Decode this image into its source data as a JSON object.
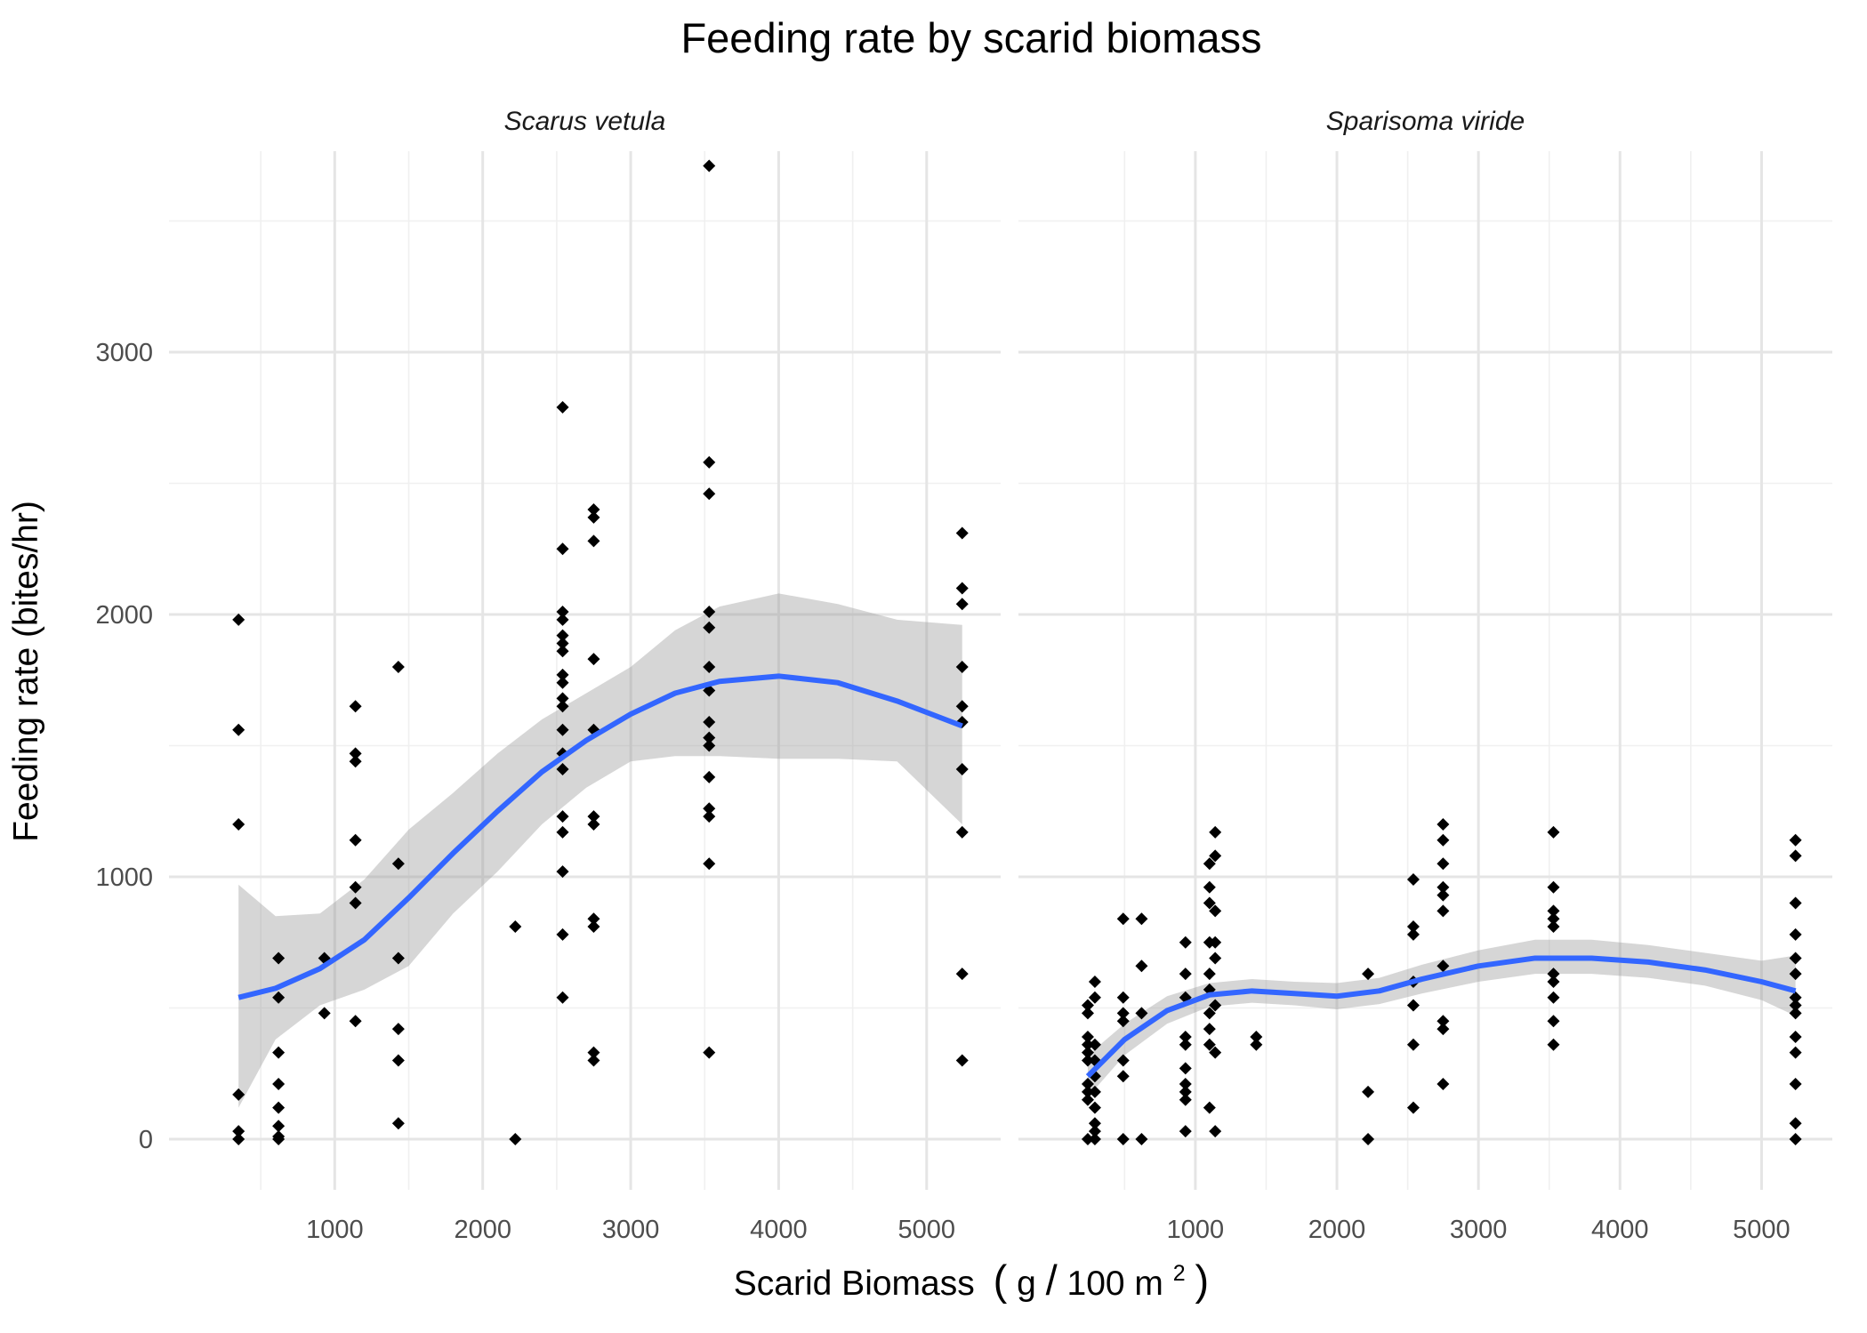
{
  "chart_data": {
    "type": "scatter",
    "title": "Feeding rate by scarid biomass",
    "xlabel": "Scarid Biomass (g/100 m²)",
    "xlabel_parts": {
      "main": "Scarid Biomass",
      "open": "(",
      "unit": "g",
      "slash": "/",
      "unit2": "100 m",
      "sup": "2",
      "close": ")"
    },
    "ylabel": "Feeding rate (bites/hr)",
    "xlim": [
      0,
      5500
    ],
    "ylim": [
      -200,
      3800
    ],
    "x_ticks": [
      1000,
      2000,
      3000,
      4000,
      5000
    ],
    "y_ticks": [
      0,
      1000,
      2000,
      3000
    ],
    "grid": true,
    "smoother_color": "#3366FF",
    "ribbon_color": "#999999",
    "point_color": "#000000",
    "panels": [
      {
        "name": "Scarus vetula",
        "xlim": [
          -120,
          5500
        ],
        "points": [
          {
            "x": 350,
            "y": 1980
          },
          {
            "x": 350,
            "y": 1560
          },
          {
            "x": 350,
            "y": 1200
          },
          {
            "x": 350,
            "y": 170
          },
          {
            "x": 350,
            "y": 30
          },
          {
            "x": 350,
            "y": 0
          },
          {
            "x": 620,
            "y": 690
          },
          {
            "x": 620,
            "y": 540
          },
          {
            "x": 620,
            "y": 330
          },
          {
            "x": 620,
            "y": 210
          },
          {
            "x": 620,
            "y": 120
          },
          {
            "x": 620,
            "y": 50
          },
          {
            "x": 620,
            "y": 10
          },
          {
            "x": 620,
            "y": 0
          },
          {
            "x": 930,
            "y": 690
          },
          {
            "x": 930,
            "y": 480
          },
          {
            "x": 1140,
            "y": 1650
          },
          {
            "x": 1140,
            "y": 1470
          },
          {
            "x": 1140,
            "y": 1440
          },
          {
            "x": 1140,
            "y": 1140
          },
          {
            "x": 1140,
            "y": 960
          },
          {
            "x": 1140,
            "y": 900
          },
          {
            "x": 1140,
            "y": 450
          },
          {
            "x": 1430,
            "y": 1800
          },
          {
            "x": 1430,
            "y": 1050
          },
          {
            "x": 1430,
            "y": 690
          },
          {
            "x": 1430,
            "y": 420
          },
          {
            "x": 1430,
            "y": 300
          },
          {
            "x": 1430,
            "y": 60
          },
          {
            "x": 2220,
            "y": 810
          },
          {
            "x": 2220,
            "y": 0
          },
          {
            "x": 2540,
            "y": 2790
          },
          {
            "x": 2540,
            "y": 2250
          },
          {
            "x": 2540,
            "y": 2010
          },
          {
            "x": 2540,
            "y": 1980
          },
          {
            "x": 2540,
            "y": 1920
          },
          {
            "x": 2540,
            "y": 1890
          },
          {
            "x": 2540,
            "y": 1860
          },
          {
            "x": 2540,
            "y": 1770
          },
          {
            "x": 2540,
            "y": 1740
          },
          {
            "x": 2540,
            "y": 1680
          },
          {
            "x": 2540,
            "y": 1650
          },
          {
            "x": 2540,
            "y": 1560
          },
          {
            "x": 2540,
            "y": 1470
          },
          {
            "x": 2540,
            "y": 1410
          },
          {
            "x": 2540,
            "y": 1230
          },
          {
            "x": 2540,
            "y": 1170
          },
          {
            "x": 2540,
            "y": 1020
          },
          {
            "x": 2540,
            "y": 780
          },
          {
            "x": 2540,
            "y": 540
          },
          {
            "x": 2750,
            "y": 2400
          },
          {
            "x": 2750,
            "y": 2370
          },
          {
            "x": 2750,
            "y": 2280
          },
          {
            "x": 2750,
            "y": 1830
          },
          {
            "x": 2750,
            "y": 1560
          },
          {
            "x": 2750,
            "y": 1230
          },
          {
            "x": 2750,
            "y": 1200
          },
          {
            "x": 2750,
            "y": 840
          },
          {
            "x": 2750,
            "y": 810
          },
          {
            "x": 2750,
            "y": 330
          },
          {
            "x": 2750,
            "y": 300
          },
          {
            "x": 3530,
            "y": 3710
          },
          {
            "x": 3530,
            "y": 2580
          },
          {
            "x": 3530,
            "y": 2460
          },
          {
            "x": 3530,
            "y": 2010
          },
          {
            "x": 3530,
            "y": 1950
          },
          {
            "x": 3530,
            "y": 1800
          },
          {
            "x": 3530,
            "y": 1710
          },
          {
            "x": 3530,
            "y": 1590
          },
          {
            "x": 3530,
            "y": 1530
          },
          {
            "x": 3530,
            "y": 1500
          },
          {
            "x": 3530,
            "y": 1380
          },
          {
            "x": 3530,
            "y": 1260
          },
          {
            "x": 3530,
            "y": 1230
          },
          {
            "x": 3530,
            "y": 1050
          },
          {
            "x": 3530,
            "y": 330
          },
          {
            "x": 5240,
            "y": 2310
          },
          {
            "x": 5240,
            "y": 2100
          },
          {
            "x": 5240,
            "y": 2040
          },
          {
            "x": 5240,
            "y": 1800
          },
          {
            "x": 5240,
            "y": 1650
          },
          {
            "x": 5240,
            "y": 1590
          },
          {
            "x": 5240,
            "y": 1410
          },
          {
            "x": 5240,
            "y": 1170
          },
          {
            "x": 5240,
            "y": 630
          },
          {
            "x": 5240,
            "y": 300
          }
        ],
        "smooth": [
          {
            "x": 350,
            "y": 540,
            "lo": 120,
            "hi": 970
          },
          {
            "x": 600,
            "y": 575,
            "lo": 380,
            "hi": 850
          },
          {
            "x": 900,
            "y": 650,
            "lo": 510,
            "hi": 860
          },
          {
            "x": 1200,
            "y": 760,
            "lo": 570,
            "hi": 990
          },
          {
            "x": 1500,
            "y": 920,
            "lo": 660,
            "hi": 1180
          },
          {
            "x": 1800,
            "y": 1090,
            "lo": 860,
            "hi": 1320
          },
          {
            "x": 2100,
            "y": 1250,
            "lo": 1020,
            "hi": 1470
          },
          {
            "x": 2400,
            "y": 1400,
            "lo": 1200,
            "hi": 1600
          },
          {
            "x": 2700,
            "y": 1520,
            "lo": 1340,
            "hi": 1700
          },
          {
            "x": 3000,
            "y": 1620,
            "lo": 1440,
            "hi": 1800
          },
          {
            "x": 3300,
            "y": 1700,
            "lo": 1460,
            "hi": 1940
          },
          {
            "x": 3600,
            "y": 1745,
            "lo": 1460,
            "hi": 2030
          },
          {
            "x": 4000,
            "y": 1765,
            "lo": 1450,
            "hi": 2080
          },
          {
            "x": 4400,
            "y": 1740,
            "lo": 1450,
            "hi": 2040
          },
          {
            "x": 4800,
            "y": 1670,
            "lo": 1440,
            "hi": 1980
          },
          {
            "x": 5240,
            "y": 1575,
            "lo": 1200,
            "hi": 1960
          }
        ]
      },
      {
        "name": "Sparisoma viride",
        "xlim": [
          -250,
          5500
        ],
        "points": [
          {
            "x": 240,
            "y": 510
          },
          {
            "x": 240,
            "y": 480
          },
          {
            "x": 240,
            "y": 390
          },
          {
            "x": 240,
            "y": 360
          },
          {
            "x": 240,
            "y": 330
          },
          {
            "x": 240,
            "y": 300
          },
          {
            "x": 240,
            "y": 210
          },
          {
            "x": 240,
            "y": 180
          },
          {
            "x": 240,
            "y": 150
          },
          {
            "x": 240,
            "y": 0
          },
          {
            "x": 290,
            "y": 600
          },
          {
            "x": 290,
            "y": 540
          },
          {
            "x": 290,
            "y": 360
          },
          {
            "x": 290,
            "y": 300
          },
          {
            "x": 290,
            "y": 240
          },
          {
            "x": 290,
            "y": 180
          },
          {
            "x": 290,
            "y": 120
          },
          {
            "x": 290,
            "y": 60
          },
          {
            "x": 290,
            "y": 30
          },
          {
            "x": 290,
            "y": 0
          },
          {
            "x": 490,
            "y": 840
          },
          {
            "x": 490,
            "y": 540
          },
          {
            "x": 490,
            "y": 480
          },
          {
            "x": 490,
            "y": 450
          },
          {
            "x": 490,
            "y": 300
          },
          {
            "x": 490,
            "y": 240
          },
          {
            "x": 490,
            "y": 0
          },
          {
            "x": 620,
            "y": 840
          },
          {
            "x": 620,
            "y": 660
          },
          {
            "x": 620,
            "y": 480
          },
          {
            "x": 620,
            "y": 0
          },
          {
            "x": 930,
            "y": 750
          },
          {
            "x": 930,
            "y": 630
          },
          {
            "x": 930,
            "y": 540
          },
          {
            "x": 930,
            "y": 390
          },
          {
            "x": 930,
            "y": 360
          },
          {
            "x": 930,
            "y": 270
          },
          {
            "x": 930,
            "y": 210
          },
          {
            "x": 930,
            "y": 180
          },
          {
            "x": 930,
            "y": 150
          },
          {
            "x": 930,
            "y": 30
          },
          {
            "x": 1100,
            "y": 1050
          },
          {
            "x": 1100,
            "y": 960
          },
          {
            "x": 1100,
            "y": 900
          },
          {
            "x": 1100,
            "y": 750
          },
          {
            "x": 1100,
            "y": 630
          },
          {
            "x": 1100,
            "y": 570
          },
          {
            "x": 1100,
            "y": 480
          },
          {
            "x": 1100,
            "y": 420
          },
          {
            "x": 1100,
            "y": 360
          },
          {
            "x": 1100,
            "y": 120
          },
          {
            "x": 1140,
            "y": 1170
          },
          {
            "x": 1140,
            "y": 1080
          },
          {
            "x": 1140,
            "y": 870
          },
          {
            "x": 1140,
            "y": 750
          },
          {
            "x": 1140,
            "y": 690
          },
          {
            "x": 1140,
            "y": 510
          },
          {
            "x": 1140,
            "y": 330
          },
          {
            "x": 1140,
            "y": 30
          },
          {
            "x": 1430,
            "y": 390
          },
          {
            "x": 1430,
            "y": 360
          },
          {
            "x": 2220,
            "y": 630
          },
          {
            "x": 2220,
            "y": 180
          },
          {
            "x": 2220,
            "y": 0
          },
          {
            "x": 2540,
            "y": 990
          },
          {
            "x": 2540,
            "y": 810
          },
          {
            "x": 2540,
            "y": 780
          },
          {
            "x": 2540,
            "y": 600
          },
          {
            "x": 2540,
            "y": 510
          },
          {
            "x": 2540,
            "y": 360
          },
          {
            "x": 2540,
            "y": 120
          },
          {
            "x": 2750,
            "y": 1200
          },
          {
            "x": 2750,
            "y": 1140
          },
          {
            "x": 2750,
            "y": 1050
          },
          {
            "x": 2750,
            "y": 960
          },
          {
            "x": 2750,
            "y": 930
          },
          {
            "x": 2750,
            "y": 870
          },
          {
            "x": 2750,
            "y": 660
          },
          {
            "x": 2750,
            "y": 450
          },
          {
            "x": 2750,
            "y": 420
          },
          {
            "x": 2750,
            "y": 210
          },
          {
            "x": 3530,
            "y": 1170
          },
          {
            "x": 3530,
            "y": 960
          },
          {
            "x": 3530,
            "y": 870
          },
          {
            "x": 3530,
            "y": 840
          },
          {
            "x": 3530,
            "y": 810
          },
          {
            "x": 3530,
            "y": 630
          },
          {
            "x": 3530,
            "y": 600
          },
          {
            "x": 3530,
            "y": 540
          },
          {
            "x": 3530,
            "y": 450
          },
          {
            "x": 3530,
            "y": 360
          },
          {
            "x": 5240,
            "y": 1140
          },
          {
            "x": 5240,
            "y": 1080
          },
          {
            "x": 5240,
            "y": 900
          },
          {
            "x": 5240,
            "y": 780
          },
          {
            "x": 5240,
            "y": 690
          },
          {
            "x": 5240,
            "y": 630
          },
          {
            "x": 5240,
            "y": 540
          },
          {
            "x": 5240,
            "y": 510
          },
          {
            "x": 5240,
            "y": 480
          },
          {
            "x": 5240,
            "y": 390
          },
          {
            "x": 5240,
            "y": 330
          },
          {
            "x": 5240,
            "y": 210
          },
          {
            "x": 5240,
            "y": 60
          },
          {
            "x": 5240,
            "y": 0
          }
        ],
        "smooth": [
          {
            "x": 240,
            "y": 240,
            "lo": 160,
            "hi": 320
          },
          {
            "x": 500,
            "y": 380,
            "lo": 320,
            "hi": 440
          },
          {
            "x": 800,
            "y": 490,
            "lo": 440,
            "hi": 545
          },
          {
            "x": 1100,
            "y": 550,
            "lo": 505,
            "hi": 595
          },
          {
            "x": 1400,
            "y": 565,
            "lo": 520,
            "hi": 610
          },
          {
            "x": 1700,
            "y": 555,
            "lo": 510,
            "hi": 600
          },
          {
            "x": 2000,
            "y": 545,
            "lo": 495,
            "hi": 595
          },
          {
            "x": 2300,
            "y": 565,
            "lo": 515,
            "hi": 615
          },
          {
            "x": 2600,
            "y": 610,
            "lo": 555,
            "hi": 665
          },
          {
            "x": 3000,
            "y": 660,
            "lo": 600,
            "hi": 720
          },
          {
            "x": 3400,
            "y": 690,
            "lo": 630,
            "hi": 760
          },
          {
            "x": 3800,
            "y": 690,
            "lo": 630,
            "hi": 760
          },
          {
            "x": 4200,
            "y": 675,
            "lo": 615,
            "hi": 740
          },
          {
            "x": 4600,
            "y": 645,
            "lo": 585,
            "hi": 710
          },
          {
            "x": 5000,
            "y": 600,
            "lo": 530,
            "hi": 680
          },
          {
            "x": 5240,
            "y": 565,
            "lo": 470,
            "hi": 700
          }
        ]
      }
    ]
  }
}
